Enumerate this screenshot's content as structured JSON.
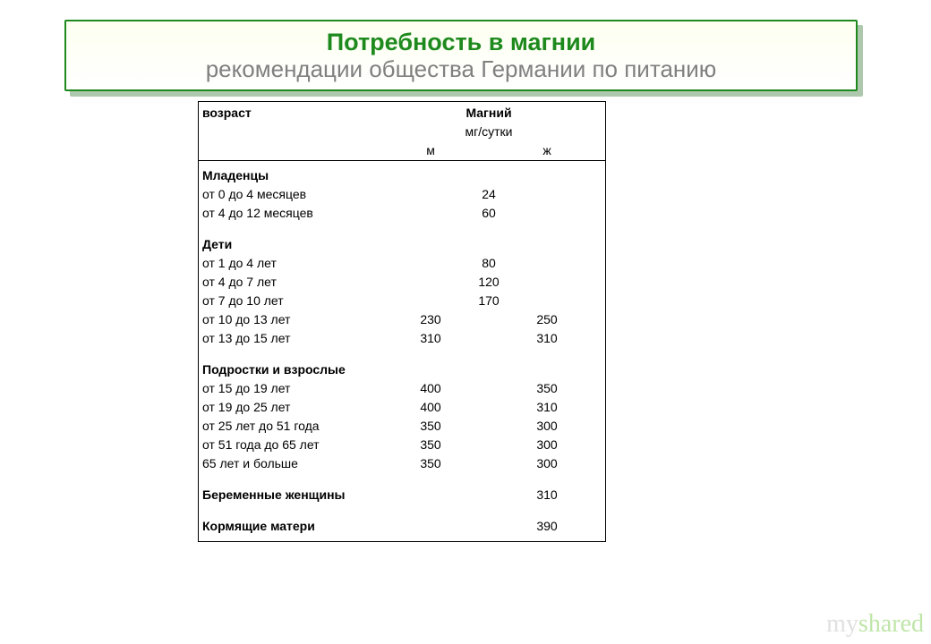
{
  "header": {
    "title": "Потребность в магнии",
    "subtitle": "рекомендации общества Германии по питанию",
    "border_color": "#1e8a1e",
    "bg_gradient_top": "#fdfff0",
    "bg_gradient_bottom": "#ffffff",
    "title_color": "#1e8a1e",
    "subtitle_color": "#808080",
    "title_fontsize": 27,
    "subtitle_fontsize": 26
  },
  "table": {
    "col_age_label": "возраст",
    "col_mg_label": "Магний",
    "col_unit_label": "мг/сутки",
    "col_m_label": "м",
    "col_f_label": "ж",
    "sections": [
      {
        "title": "Младенцы",
        "rows": [
          {
            "label": "от 0 до 4 месяцев",
            "m": "24",
            "f": ""
          },
          {
            "label": "от 4 до 12 месяцев",
            "m": "60",
            "f": ""
          }
        ]
      },
      {
        "title": "Дети",
        "rows": [
          {
            "label": "от 1 до 4 лет",
            "m": "80",
            "f": ""
          },
          {
            "label": "от 4 до 7 лет",
            "m": "120",
            "f": ""
          },
          {
            "label": "от 7 до 10 лет",
            "m": "170",
            "f": ""
          },
          {
            "label": "от 10 до 13 лет",
            "m": "230",
            "f": "250"
          },
          {
            "label": "от 13 до 15 лет",
            "m": "310",
            "f": "310"
          }
        ]
      },
      {
        "title": "Подростки и взрослые",
        "rows": [
          {
            "label": "от 15 до 19 лет",
            "m": "400",
            "f": "350"
          },
          {
            "label": "от 19 до 25 лет",
            "m": "400",
            "f": "310"
          },
          {
            "label": "от 25 лет до 51 года",
            "m": "350",
            "f": "300"
          },
          {
            "label": "от 51 года до 65 лет",
            "m": "350",
            "f": "300"
          },
          {
            "label": "65 лет и больше",
            "m": "350",
            "f": "300"
          }
        ]
      },
      {
        "title": "Беременные женщины",
        "title_f": "310",
        "rows": []
      },
      {
        "title": "Кормящие матери",
        "title_f": "390",
        "rows": []
      }
    ]
  },
  "watermark": {
    "text_my": "my",
    "text_shared": "shared",
    "color_my": "#e0e0e0",
    "color_shared": "#bfe6a8"
  }
}
